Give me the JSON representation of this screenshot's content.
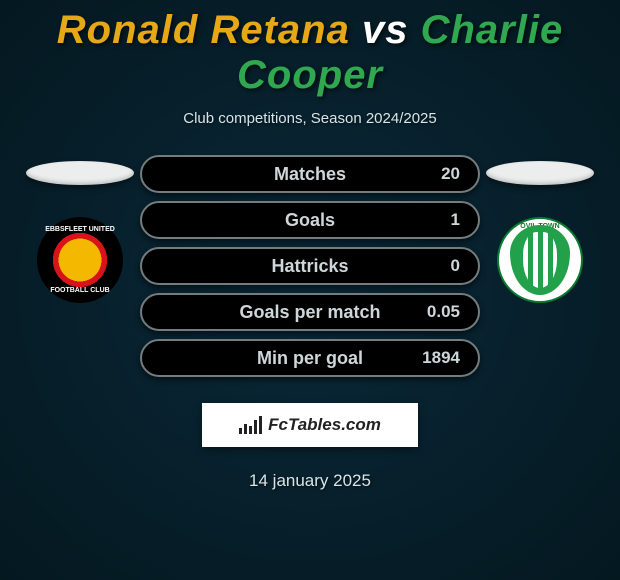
{
  "title": {
    "player1": "Ronald Retana",
    "vs": "vs",
    "player2": "Charlie Cooper",
    "player1_color": "#e6a817",
    "player2_color": "#2fa84f"
  },
  "subtitle": "Club competitions, Season 2024/2025",
  "colors": {
    "bg_inner": "#0a2838",
    "bg_outer": "#041820",
    "bar_bg": "#000000",
    "bar_border": "#747c7e",
    "label_color": "#cfd6d8",
    "ellipse_color": "#eceeee"
  },
  "stats": [
    {
      "label": "Matches",
      "p1": "",
      "p2": "20",
      "p1w": 0,
      "p2w": 100
    },
    {
      "label": "Goals",
      "p1": "",
      "p2": "1",
      "p1w": 0,
      "p2w": 100
    },
    {
      "label": "Hattricks",
      "p1": "",
      "p2": "0",
      "p1w": 0,
      "p2w": 0
    },
    {
      "label": "Goals per match",
      "p1": "",
      "p2": "0.05",
      "p1w": 0,
      "p2w": 100
    },
    {
      "label": "Min per goal",
      "p1": "",
      "p2": "1894",
      "p1w": 0,
      "p2w": 100
    }
  ],
  "badges": {
    "left": {
      "text_top": "EBBSFLEET UNITED",
      "text_bot": "FOOTBALL CLUB"
    },
    "right": {
      "text_top": "OVIL TOWN"
    }
  },
  "logo": {
    "text": "FcTables.com"
  },
  "date": "14 january 2025"
}
